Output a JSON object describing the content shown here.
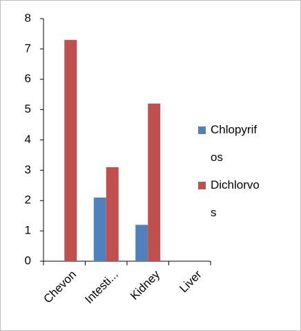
{
  "chart_data": {
    "type": "bar",
    "categories": [
      "Chevon",
      "Intesti...",
      "Kidney",
      "Liver"
    ],
    "series": [
      {
        "name": "Chlopyrifos",
        "color": "#4f81bd",
        "values": [
          0,
          2.1,
          1.2,
          0
        ]
      },
      {
        "name": "Dichlorvos",
        "color": "#c0504d",
        "values": [
          7.3,
          3.1,
          5.2,
          0
        ]
      }
    ],
    "ylim": [
      0,
      8
    ],
    "yticks": [
      0,
      1,
      2,
      3,
      4,
      5,
      6,
      7,
      8
    ],
    "grid": false,
    "legend": "right"
  }
}
